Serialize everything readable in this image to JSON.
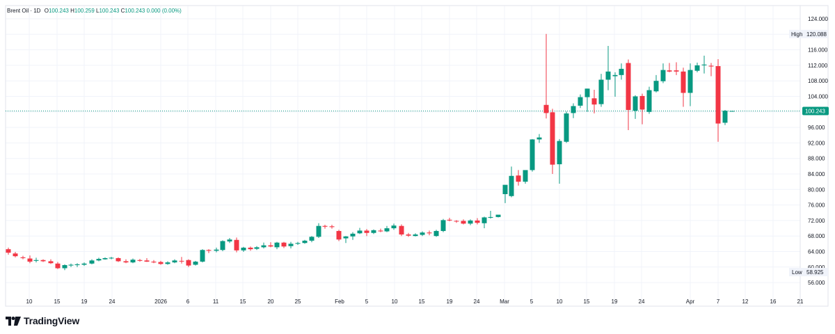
{
  "header": {
    "symbol": "Brent Oil · 1D",
    "o_label": "O",
    "o_value": "100.243",
    "h_label": "H",
    "h_value": "100.259",
    "l_label": "L",
    "l_value": "100.243",
    "c_label": "C",
    "c_value": "100.243",
    "change": "0.000 (0.00%)"
  },
  "branding": {
    "name": "TradingView",
    "icon": "tradingview-logo-icon"
  },
  "colors": {
    "up": "#089981",
    "down": "#f23645",
    "last_price": "#089981",
    "grid": "#f0f3fa",
    "text": "#131722"
  },
  "chart_data": {
    "type": "candlestick",
    "title": "Brent Oil · 1D",
    "ylim": [
      54,
      126
    ],
    "y_ticks": [
      "124.000",
      "120.000",
      "116.000",
      "112.000",
      "108.000",
      "104.000",
      "100.000",
      "96.000",
      "92.000",
      "88.000",
      "84.000",
      "80.000",
      "76.000",
      "72.000",
      "68.000",
      "64.000",
      "60.000",
      "56.000"
    ],
    "x_ticks": [
      "10",
      "15",
      "19",
      "24",
      "2026",
      "6",
      "11",
      "15",
      "20",
      "25",
      "Feb",
      "5",
      "10",
      "15",
      "19",
      "24",
      "Mar",
      "5",
      "10",
      "15",
      "19",
      "24",
      "Apr",
      "7",
      "12",
      "16",
      "21"
    ],
    "high_label": "High",
    "high_value": "120.088",
    "low_label": "Low",
    "low_value": "58.925",
    "last_price": "100.243",
    "grid": true,
    "candles": [
      {
        "x": 12,
        "o": 64.6,
        "h": 65.0,
        "l": 63.2,
        "c": 63.7
      },
      {
        "x": 22,
        "o": 63.5,
        "h": 63.9,
        "l": 62.5,
        "c": 62.8
      },
      {
        "x": 33,
        "o": 62.5,
        "h": 62.9,
        "l": 62.0,
        "c": 62.3
      },
      {
        "x": 43,
        "o": 62.2,
        "h": 63.0,
        "l": 61.0,
        "c": 61.4
      },
      {
        "x": 52,
        "o": 61.6,
        "h": 62.4,
        "l": 61.2,
        "c": 61.8
      },
      {
        "x": 62,
        "o": 61.8,
        "h": 62.0,
        "l": 61.3,
        "c": 61.5
      },
      {
        "x": 73,
        "o": 61.5,
        "h": 62.0,
        "l": 60.8,
        "c": 61.0
      },
      {
        "x": 83,
        "o": 60.9,
        "h": 61.3,
        "l": 59.5,
        "c": 59.7
      },
      {
        "x": 93,
        "o": 59.7,
        "h": 60.7,
        "l": 59.2,
        "c": 60.5
      },
      {
        "x": 102,
        "o": 60.4,
        "h": 60.9,
        "l": 60.0,
        "c": 60.6
      },
      {
        "x": 111,
        "o": 60.5,
        "h": 61.0,
        "l": 60.0,
        "c": 60.7
      },
      {
        "x": 121,
        "o": 60.6,
        "h": 61.2,
        "l": 60.3,
        "c": 60.9
      },
      {
        "x": 132,
        "o": 60.9,
        "h": 62.0,
        "l": 60.7,
        "c": 61.7
      },
      {
        "x": 142,
        "o": 61.7,
        "h": 62.4,
        "l": 61.5,
        "c": 62.1
      },
      {
        "x": 151,
        "o": 62.0,
        "h": 62.5,
        "l": 61.9,
        "c": 62.3
      },
      {
        "x": 160,
        "o": 62.3,
        "h": 62.6,
        "l": 62.0,
        "c": 62.4
      },
      {
        "x": 170,
        "o": 62.3,
        "h": 62.5,
        "l": 61.3,
        "c": 61.5
      },
      {
        "x": 181,
        "o": 61.5,
        "h": 62.0,
        "l": 61.0,
        "c": 61.2
      },
      {
        "x": 191,
        "o": 61.2,
        "h": 62.2,
        "l": 61.0,
        "c": 61.9
      },
      {
        "x": 201,
        "o": 61.8,
        "h": 62.1,
        "l": 61.4,
        "c": 61.6
      },
      {
        "x": 211,
        "o": 61.7,
        "h": 62.3,
        "l": 61.3,
        "c": 61.4
      },
      {
        "x": 221,
        "o": 61.4,
        "h": 61.8,
        "l": 61.0,
        "c": 61.2
      },
      {
        "x": 231,
        "o": 61.3,
        "h": 61.6,
        "l": 60.6,
        "c": 60.8
      },
      {
        "x": 241,
        "o": 60.8,
        "h": 61.5,
        "l": 60.6,
        "c": 61.2
      },
      {
        "x": 251,
        "o": 61.2,
        "h": 62.0,
        "l": 61.0,
        "c": 61.7
      },
      {
        "x": 261,
        "o": 61.6,
        "h": 62.6,
        "l": 60.9,
        "c": 61.5
      },
      {
        "x": 271,
        "o": 61.8,
        "h": 62.0,
        "l": 60.0,
        "c": 60.4
      },
      {
        "x": 281,
        "o": 60.6,
        "h": 61.6,
        "l": 60.4,
        "c": 61.4
      },
      {
        "x": 291,
        "o": 61.4,
        "h": 64.6,
        "l": 61.2,
        "c": 64.4
      },
      {
        "x": 300,
        "o": 64.4,
        "h": 64.6,
        "l": 63.6,
        "c": 64.2
      },
      {
        "x": 311,
        "o": 64.2,
        "h": 65.0,
        "l": 63.8,
        "c": 64.5
      },
      {
        "x": 320,
        "o": 64.4,
        "h": 66.9,
        "l": 64.1,
        "c": 66.7
      },
      {
        "x": 330,
        "o": 66.6,
        "h": 67.5,
        "l": 66.2,
        "c": 67.1
      },
      {
        "x": 340,
        "o": 67.0,
        "h": 67.6,
        "l": 63.8,
        "c": 64.3
      },
      {
        "x": 350,
        "o": 64.3,
        "h": 65.2,
        "l": 63.9,
        "c": 65.0
      },
      {
        "x": 360,
        "o": 65.0,
        "h": 65.3,
        "l": 64.2,
        "c": 64.6
      },
      {
        "x": 369,
        "o": 64.7,
        "h": 65.4,
        "l": 64.4,
        "c": 65.1
      },
      {
        "x": 379,
        "o": 65.1,
        "h": 66.3,
        "l": 64.8,
        "c": 65.6
      },
      {
        "x": 389,
        "o": 65.6,
        "h": 66.4,
        "l": 65.1,
        "c": 65.3
      },
      {
        "x": 398,
        "o": 65.1,
        "h": 66.5,
        "l": 64.6,
        "c": 66.3
      },
      {
        "x": 408,
        "o": 66.3,
        "h": 66.5,
        "l": 64.9,
        "c": 65.3
      },
      {
        "x": 418,
        "o": 65.4,
        "h": 66.5,
        "l": 64.8,
        "c": 66.0
      },
      {
        "x": 428,
        "o": 66.0,
        "h": 66.5,
        "l": 65.7,
        "c": 66.2
      },
      {
        "x": 438,
        "o": 66.2,
        "h": 67.0,
        "l": 66.0,
        "c": 66.8
      },
      {
        "x": 448,
        "o": 66.8,
        "h": 68.0,
        "l": 66.4,
        "c": 67.8
      },
      {
        "x": 458,
        "o": 67.8,
        "h": 71.3,
        "l": 67.5,
        "c": 70.6
      },
      {
        "x": 467,
        "o": 70.6,
        "h": 70.9,
        "l": 69.9,
        "c": 70.4
      },
      {
        "x": 477,
        "o": 70.5,
        "h": 70.9,
        "l": 69.9,
        "c": 70.3
      },
      {
        "x": 487,
        "o": 69.3,
        "h": 69.6,
        "l": 66.7,
        "c": 67.1
      },
      {
        "x": 497,
        "o": 67.4,
        "h": 68.0,
        "l": 66.2,
        "c": 67.9
      },
      {
        "x": 507,
        "o": 67.9,
        "h": 69.0,
        "l": 67.0,
        "c": 68.6
      },
      {
        "x": 517,
        "o": 68.7,
        "h": 70.1,
        "l": 68.5,
        "c": 69.4
      },
      {
        "x": 527,
        "o": 69.4,
        "h": 69.8,
        "l": 68.0,
        "c": 68.8
      },
      {
        "x": 537,
        "o": 68.8,
        "h": 69.7,
        "l": 68.5,
        "c": 69.5
      },
      {
        "x": 547,
        "o": 69.4,
        "h": 69.9,
        "l": 69.0,
        "c": 69.2
      },
      {
        "x": 556,
        "o": 69.2,
        "h": 70.6,
        "l": 69.0,
        "c": 70.0
      },
      {
        "x": 566,
        "o": 70.0,
        "h": 71.2,
        "l": 69.6,
        "c": 70.7
      },
      {
        "x": 577,
        "o": 70.6,
        "h": 71.0,
        "l": 68.0,
        "c": 68.4
      },
      {
        "x": 587,
        "o": 68.4,
        "h": 68.8,
        "l": 67.8,
        "c": 68.1
      },
      {
        "x": 597,
        "o": 68.0,
        "h": 68.7,
        "l": 67.9,
        "c": 68.4
      },
      {
        "x": 607,
        "o": 68.3,
        "h": 69.2,
        "l": 68.0,
        "c": 68.9
      },
      {
        "x": 617,
        "o": 68.9,
        "h": 69.4,
        "l": 68.2,
        "c": 68.7
      },
      {
        "x": 627,
        "o": 68.0,
        "h": 69.6,
        "l": 67.8,
        "c": 69.3
      },
      {
        "x": 637,
        "o": 69.3,
        "h": 72.4,
        "l": 69.0,
        "c": 72.1
      },
      {
        "x": 646,
        "o": 72.2,
        "h": 72.7,
        "l": 71.8,
        "c": 72.0
      },
      {
        "x": 656,
        "o": 71.9,
        "h": 72.1,
        "l": 71.4,
        "c": 71.8
      },
      {
        "x": 666,
        "o": 71.9,
        "h": 72.3,
        "l": 71.0,
        "c": 71.2
      },
      {
        "x": 676,
        "o": 71.2,
        "h": 72.3,
        "l": 70.8,
        "c": 72.0
      },
      {
        "x": 686,
        "o": 72.0,
        "h": 72.6,
        "l": 71.0,
        "c": 71.4
      },
      {
        "x": 696,
        "o": 71.3,
        "h": 73.0,
        "l": 70.0,
        "c": 72.8
      },
      {
        "x": 705,
        "o": 72.7,
        "h": 74.5,
        "l": 72.5,
        "c": 72.9
      },
      {
        "x": 716,
        "o": 72.9,
        "h": 73.4,
        "l": 72.8,
        "c": 73.5
      },
      {
        "x": 726,
        "o": 78.8,
        "h": 80.5,
        "l": 76.5,
        "c": 81.2
      },
      {
        "x": 735,
        "o": 78.3,
        "h": 85.9,
        "l": 78.0,
        "c": 83.5
      },
      {
        "x": 745,
        "o": 83.6,
        "h": 85.0,
        "l": 81.0,
        "c": 82.0
      },
      {
        "x": 755,
        "o": 82.0,
        "h": 84.9,
        "l": 81.5,
        "c": 85.0
      },
      {
        "x": 765,
        "o": 85.0,
        "h": 93.0,
        "l": 84.6,
        "c": 92.9
      },
      {
        "x": 775,
        "o": 92.9,
        "h": 94.3,
        "l": 92.0,
        "c": 93.4
      },
      {
        "x": 785,
        "o": 101.8,
        "h": 120.1,
        "l": 98.3,
        "c": 99.7
      },
      {
        "x": 794,
        "o": 99.9,
        "h": 100.8,
        "l": 84.0,
        "c": 86.4
      },
      {
        "x": 804,
        "o": 86.5,
        "h": 93.0,
        "l": 81.5,
        "c": 92.5
      },
      {
        "x": 814,
        "o": 92.3,
        "h": 100.1,
        "l": 92.0,
        "c": 99.6
      },
      {
        "x": 824,
        "o": 99.7,
        "h": 102.2,
        "l": 98.4,
        "c": 101.5
      },
      {
        "x": 834,
        "o": 101.6,
        "h": 104.5,
        "l": 101.0,
        "c": 103.8
      },
      {
        "x": 844,
        "o": 103.8,
        "h": 106.0,
        "l": 100.0,
        "c": 106.0
      },
      {
        "x": 854,
        "o": 103.5,
        "h": 105.7,
        "l": 99.6,
        "c": 101.9
      },
      {
        "x": 864,
        "o": 102.0,
        "h": 109.8,
        "l": 101.3,
        "c": 108.3
      },
      {
        "x": 874,
        "o": 108.3,
        "h": 117.0,
        "l": 105.6,
        "c": 110.4
      },
      {
        "x": 884,
        "o": 109.2,
        "h": 110.2,
        "l": 103.9,
        "c": 109.5
      },
      {
        "x": 893,
        "o": 109.5,
        "h": 112.5,
        "l": 108.3,
        "c": 111.1
      },
      {
        "x": 903,
        "o": 112.6,
        "h": 113.5,
        "l": 95.3,
        "c": 100.5
      },
      {
        "x": 913,
        "o": 100.3,
        "h": 104.3,
        "l": 98.2,
        "c": 104.0
      },
      {
        "x": 923,
        "o": 104.1,
        "h": 104.7,
        "l": 96.8,
        "c": 100.6
      },
      {
        "x": 933,
        "o": 100.0,
        "h": 106.5,
        "l": 99.5,
        "c": 105.6
      },
      {
        "x": 943,
        "o": 105.3,
        "h": 109.5,
        "l": 105.0,
        "c": 108.0
      },
      {
        "x": 953,
        "o": 107.9,
        "h": 112.5,
        "l": 107.4,
        "c": 110.8
      },
      {
        "x": 962,
        "o": 110.7,
        "h": 112.6,
        "l": 110.2,
        "c": 110.4
      },
      {
        "x": 972,
        "o": 110.7,
        "h": 112.8,
        "l": 109.5,
        "c": 110.4
      },
      {
        "x": 982,
        "o": 110.4,
        "h": 111.4,
        "l": 101.3,
        "c": 104.9
      },
      {
        "x": 992,
        "o": 104.9,
        "h": 112.5,
        "l": 101.5,
        "c": 110.8
      },
      {
        "x": 1002,
        "o": 110.6,
        "h": 112.7,
        "l": 110.2,
        "c": 112.0
      },
      {
        "x": 1012,
        "o": 112.0,
        "h": 114.5,
        "l": 109.9,
        "c": 112.2
      },
      {
        "x": 1022,
        "o": 111.9,
        "h": 112.6,
        "l": 109.2,
        "c": 111.7
      },
      {
        "x": 1032,
        "o": 111.8,
        "h": 113.6,
        "l": 92.3,
        "c": 97.0
      },
      {
        "x": 1042,
        "o": 97.2,
        "h": 100.5,
        "l": 96.6,
        "c": 100.3
      },
      {
        "x": 1052,
        "o": 100.243,
        "h": 100.259,
        "l": 100.243,
        "c": 100.243
      }
    ]
  }
}
